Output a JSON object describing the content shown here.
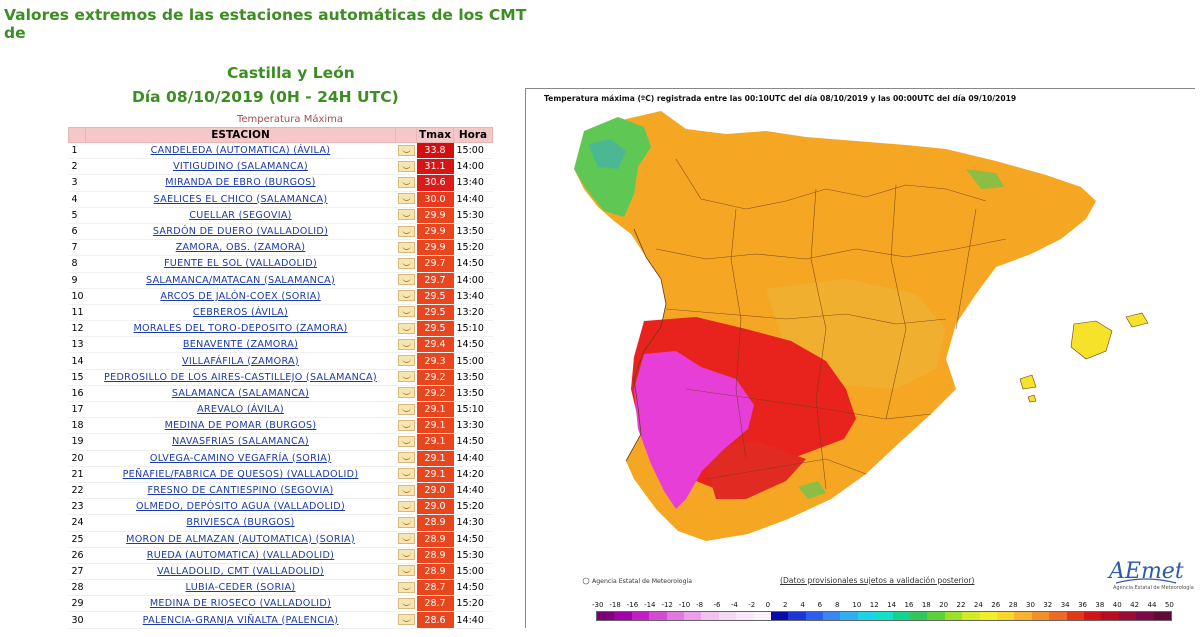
{
  "header": {
    "title_line1": "Valores extremos de las estaciones automáticas de los CMT de",
    "title_line2": "Castilla y León",
    "day": "Día 08/10/2019 (0H - 24H UTC)"
  },
  "table": {
    "caption": "Temperatura Máxima",
    "headers": {
      "num": "",
      "station": "ESTACION",
      "graph": "",
      "tmax": "Tmax",
      "hour": "Hora"
    },
    "rows": [
      {
        "n": "1",
        "station": "CANDELEDA (AUTOMATICA) (ÁVILA)",
        "tmax": "33.8",
        "hour": "15:00",
        "color": "#d40e0e"
      },
      {
        "n": "2",
        "station": "VITIGUDINO (SALAMANCA)",
        "tmax": "31.1",
        "hour": "14:00",
        "color": "#d91414"
      },
      {
        "n": "3",
        "station": "MIRANDA DE EBRO (BURGOS)",
        "tmax": "30.6",
        "hour": "13:40",
        "color": "#dc1a1a"
      },
      {
        "n": "4",
        "station": "SAELICES EL CHICO (SALAMANCA)",
        "tmax": "30.0",
        "hour": "14:40",
        "color": "#e63b1e"
      },
      {
        "n": "5",
        "station": "CUELLAR (SEGOVIA)",
        "tmax": "29.9",
        "hour": "15:30",
        "color": "#e8461f"
      },
      {
        "n": "6",
        "station": "SARDÓN DE DUERO (VALLADOLID)",
        "tmax": "29.9",
        "hour": "13:50",
        "color": "#e8461f"
      },
      {
        "n": "7",
        "station": "ZAMORA, OBS. (ZAMORA)",
        "tmax": "29.9",
        "hour": "15:20",
        "color": "#e8461f"
      },
      {
        "n": "8",
        "station": "FUENTE EL SOL (VALLADOLID)",
        "tmax": "29.7",
        "hour": "14:50",
        "color": "#e8461f"
      },
      {
        "n": "9",
        "station": "SALAMANCA/MATACAN (SALAMANCA)",
        "tmax": "29.7",
        "hour": "14:00",
        "color": "#e8461f"
      },
      {
        "n": "10",
        "station": "ARCOS DE JALÓN-COEX (SORIA)",
        "tmax": "29.5",
        "hour": "13:40",
        "color": "#e8461f"
      },
      {
        "n": "11",
        "station": "CEBREROS (ÁVILA)",
        "tmax": "29.5",
        "hour": "13:20",
        "color": "#e8461f"
      },
      {
        "n": "12",
        "station": "MORALES DEL TORO-DEPOSITO (ZAMORA)",
        "tmax": "29.5",
        "hour": "15:10",
        "color": "#e8461f"
      },
      {
        "n": "13",
        "station": "BENAVENTE (ZAMORA)",
        "tmax": "29.4",
        "hour": "14:50",
        "color": "#e8461f"
      },
      {
        "n": "14",
        "station": "VILLAFÁFILA (ZAMORA)",
        "tmax": "29.3",
        "hour": "15:00",
        "color": "#e8461f"
      },
      {
        "n": "15",
        "station": "PEDROSILLO DE LOS AIRES-CASTILLEJO (SALAMANCA)",
        "tmax": "29.2",
        "hour": "13:50",
        "color": "#e8461f"
      },
      {
        "n": "16",
        "station": "SALAMANCA (SALAMANCA)",
        "tmax": "29.2",
        "hour": "13:50",
        "color": "#e8461f"
      },
      {
        "n": "17",
        "station": "AREVALO (ÁVILA)",
        "tmax": "29.1",
        "hour": "15:10",
        "color": "#e8461f"
      },
      {
        "n": "18",
        "station": "MEDINA DE POMAR (BURGOS)",
        "tmax": "29.1",
        "hour": "13:30",
        "color": "#e8461f"
      },
      {
        "n": "19",
        "station": "NAVASFRIAS (SALAMANCA)",
        "tmax": "29.1",
        "hour": "14:50",
        "color": "#e8461f"
      },
      {
        "n": "20",
        "station": "OLVEGA-CAMINO VEGAFRÍA (SORIA)",
        "tmax": "29.1",
        "hour": "14:40",
        "color": "#e8461f"
      },
      {
        "n": "21",
        "station": "PEÑAFIEL/FABRICA DE QUESOS) (VALLADOLID)",
        "tmax": "29.1",
        "hour": "14:20",
        "color": "#e8461f"
      },
      {
        "n": "22",
        "station": "FRESNO DE CANTIESPINO (SEGOVIA)",
        "tmax": "29.0",
        "hour": "14:40",
        "color": "#e8461f"
      },
      {
        "n": "23",
        "station": "OLMEDO, DEPÓSITO AGUA (VALLADOLID)",
        "tmax": "29.0",
        "hour": "15:20",
        "color": "#e8461f"
      },
      {
        "n": "24",
        "station": "BRIVIESCA (BURGOS)",
        "tmax": "28.9",
        "hour": "14:30",
        "color": "#e8461f"
      },
      {
        "n": "25",
        "station": "MORON DE ALMAZAN (AUTOMATICA) (SORIA)",
        "tmax": "28.9",
        "hour": "14:50",
        "color": "#e8461f"
      },
      {
        "n": "26",
        "station": "RUEDA (AUTOMATICA) (VALLADOLID)",
        "tmax": "28.9",
        "hour": "15:30",
        "color": "#e8461f"
      },
      {
        "n": "27",
        "station": "VALLADOLID, CMT (VALLADOLID)",
        "tmax": "28.9",
        "hour": "15:00",
        "color": "#e8461f"
      },
      {
        "n": "28",
        "station": "LUBIA-CEDER (SORIA)",
        "tmax": "28.7",
        "hour": "14:50",
        "color": "#e8461f"
      },
      {
        "n": "29",
        "station": "MEDINA DE RIOSECO (VALLADOLID)",
        "tmax": "28.7",
        "hour": "15:20",
        "color": "#e8461f"
      },
      {
        "n": "30",
        "station": "PALENCIA-GRANJA VIÑALTA (PALENCIA)",
        "tmax": "28.6",
        "hour": "14:40",
        "color": "#e8461f"
      }
    ]
  },
  "map": {
    "title": "Temperatura máxima (ºC) registrada entre las 00:10UTC del día 08/10/2019 y las 00:00UTC del día 09/10/2019",
    "note": "(Datos provisionales sujetos a validación posterior)",
    "agency": "Agencia Estatal de Meteorología",
    "logo": "AEmet",
    "logo_sub": "Agencia Estatal de Meteorología",
    "scale_labels": [
      "-30",
      "-18",
      "-16",
      "-14",
      "-12",
      "-10",
      "-8",
      "-6",
      "-4",
      "-2",
      "0",
      "2",
      "4",
      "6",
      "8",
      "10",
      "12",
      "14",
      "16",
      "18",
      "20",
      "22",
      "24",
      "26",
      "28",
      "30",
      "32",
      "34",
      "36",
      "38",
      "40",
      "42",
      "44",
      "50"
    ],
    "scale_colors": [
      "#7a007a",
      "#a000a8",
      "#c21ec2",
      "#d34bd3",
      "#e07ae0",
      "#eb9feb",
      "#f2c2f2",
      "#f5d9f5",
      "#f8e8f8",
      "#fbf3fb",
      "#0a0aa8",
      "#1c36d6",
      "#2c5ef0",
      "#3a86f4",
      "#2fb0f0",
      "#1ed2e8",
      "#12e0c8",
      "#16d28e",
      "#32c85a",
      "#5ed23a",
      "#9ce028",
      "#d2ec2a",
      "#f2ee2a",
      "#f8d82a",
      "#f8b42a",
      "#f59028",
      "#ef6a22",
      "#e2381a",
      "#d21414",
      "#b80e22",
      "#9c0c38",
      "#7c0a4a",
      "#62083a"
    ],
    "accent_colors": {
      "spain_base": "#f5a623",
      "hot": "#e8231e",
      "hottest": "#e83ed8",
      "cool": "#5fc854",
      "islands": "#f7e22a"
    }
  }
}
